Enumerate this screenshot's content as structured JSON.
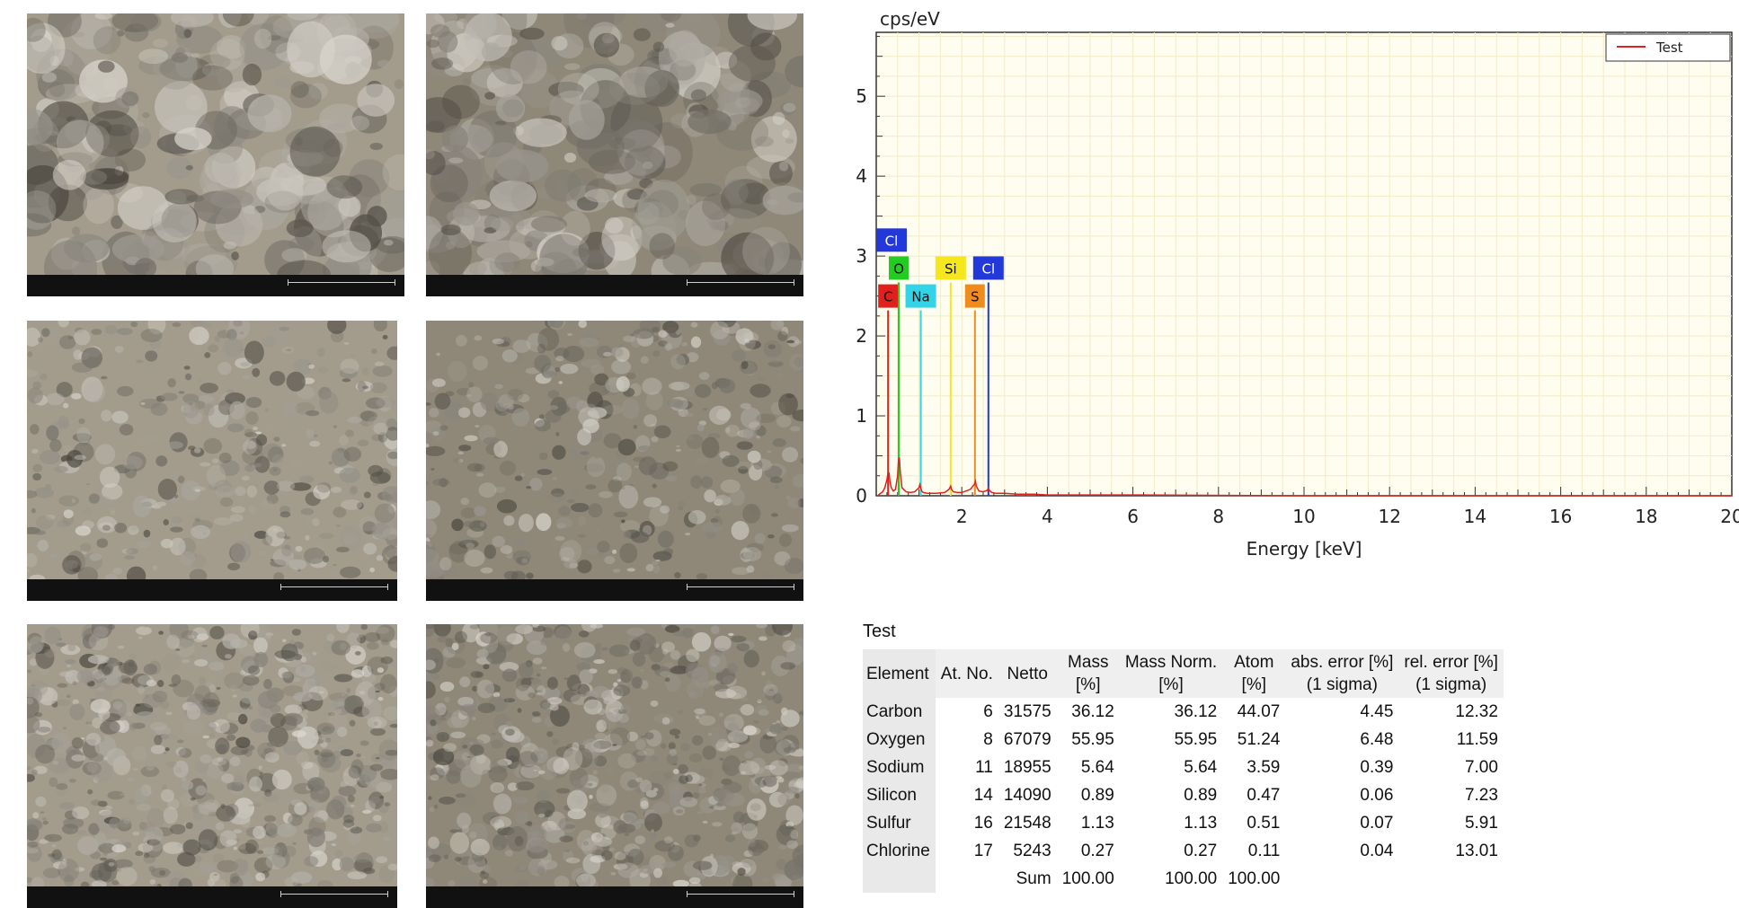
{
  "chart_data": {
    "type": "line",
    "ylabel": "cps/eV",
    "xlabel": "Energy [keV]",
    "xlim": [
      0,
      20
    ],
    "ylim": [
      0,
      5.8
    ],
    "x_ticks": [
      2,
      4,
      6,
      8,
      10,
      12,
      14,
      16,
      18,
      20
    ],
    "y_ticks": [
      0,
      1,
      2,
      3,
      4,
      5
    ],
    "grid": true,
    "legend": "top-right",
    "series": [
      {
        "name": "Test",
        "color": "#e0201c",
        "x": [
          0.05,
          0.15,
          0.2,
          0.25,
          0.28,
          0.3,
          0.32,
          0.35,
          0.4,
          0.45,
          0.5,
          0.52,
          0.54,
          0.56,
          0.6,
          0.7,
          0.8,
          0.9,
          1.0,
          1.02,
          1.04,
          1.06,
          1.1,
          1.2,
          1.4,
          1.6,
          1.7,
          1.74,
          1.76,
          1.8,
          1.9,
          2.0,
          2.2,
          2.3,
          2.32,
          2.34,
          2.4,
          2.5,
          2.6,
          2.62,
          2.64,
          2.7,
          2.8,
          3.0,
          3.3,
          3.7,
          4.0,
          6.0,
          10.0,
          15.0,
          20.0
        ],
        "y": [
          0.01,
          0.05,
          0.1,
          0.2,
          0.3,
          0.28,
          0.18,
          0.1,
          0.06,
          0.08,
          0.25,
          0.45,
          0.48,
          0.3,
          0.1,
          0.05,
          0.04,
          0.05,
          0.1,
          0.14,
          0.1,
          0.06,
          0.04,
          0.03,
          0.03,
          0.04,
          0.08,
          0.12,
          0.08,
          0.05,
          0.04,
          0.04,
          0.08,
          0.15,
          0.18,
          0.12,
          0.06,
          0.05,
          0.07,
          0.1,
          0.07,
          0.04,
          0.03,
          0.03,
          0.02,
          0.02,
          0.01,
          0.01,
          0.0,
          0.0,
          0.0
        ]
      }
    ],
    "element_markers": [
      {
        "symbol": "C",
        "energy": 0.277,
        "label_y": 2.5,
        "color": "#e0201c"
      },
      {
        "symbol": "O",
        "energy": 0.525,
        "label_y": 2.85,
        "color": "#22cc22"
      },
      {
        "symbol": "Na",
        "energy": 1.041,
        "label_y": 2.5,
        "color": "#33d3e8"
      },
      {
        "symbol": "Si",
        "energy": 1.74,
        "label_y": 2.85,
        "color": "#f5e61e"
      },
      {
        "symbol": "S",
        "energy": 2.307,
        "label_y": 2.5,
        "color": "#f08b1e"
      },
      {
        "symbol": "Cl",
        "energy": 2.622,
        "label_y": 2.85,
        "color": "#2238d8"
      },
      {
        "symbol": "Cl",
        "energy": 0.18,
        "label_y": 3.2,
        "color": "#2238d8"
      }
    ]
  },
  "table": {
    "title": "Test",
    "headers": [
      {
        "top": "",
        "bottom": "Element"
      },
      {
        "top": "",
        "bottom": "At. No."
      },
      {
        "top": "",
        "bottom": "Netto"
      },
      {
        "top": "Mass",
        "bottom": "[%]"
      },
      {
        "top": "Mass Norm.",
        "bottom": "[%]"
      },
      {
        "top": "Atom",
        "bottom": "[%]"
      },
      {
        "top": "abs. error [%]",
        "bottom": "(1 sigma)"
      },
      {
        "top": "rel. error [%]",
        "bottom": "(1 sigma)"
      }
    ],
    "rows": [
      [
        "Carbon",
        "6",
        "31575",
        "36.12",
        "36.12",
        "44.07",
        "4.45",
        "12.32"
      ],
      [
        "Oxygen",
        "8",
        "67079",
        "55.95",
        "55.95",
        "51.24",
        "6.48",
        "11.59"
      ],
      [
        "Sodium",
        "11",
        "18955",
        "5.64",
        "5.64",
        "3.59",
        "0.39",
        "7.00"
      ],
      [
        "Silicon",
        "14",
        "14090",
        "0.89",
        "0.89",
        "0.47",
        "0.06",
        "7.23"
      ],
      [
        "Sulfur",
        "16",
        "21548",
        "1.13",
        "1.13",
        "0.51",
        "0.07",
        "5.91"
      ],
      [
        "Chlorine",
        "17",
        "5243",
        "0.27",
        "0.27",
        "0.11",
        "0.04",
        "13.01"
      ]
    ],
    "sum_label": "Sum",
    "sum": [
      "100.00",
      "100.00",
      "100.00"
    ]
  },
  "colors": {
    "plot_background": "#fffdf0",
    "grid": "#f2ecc8",
    "sem_tone": "#9c9585"
  },
  "sem_images": [
    {
      "name": "sem-image-1"
    },
    {
      "name": "sem-image-2"
    },
    {
      "name": "sem-image-3"
    },
    {
      "name": "sem-image-4"
    },
    {
      "name": "sem-image-5"
    },
    {
      "name": "sem-image-6"
    }
  ]
}
